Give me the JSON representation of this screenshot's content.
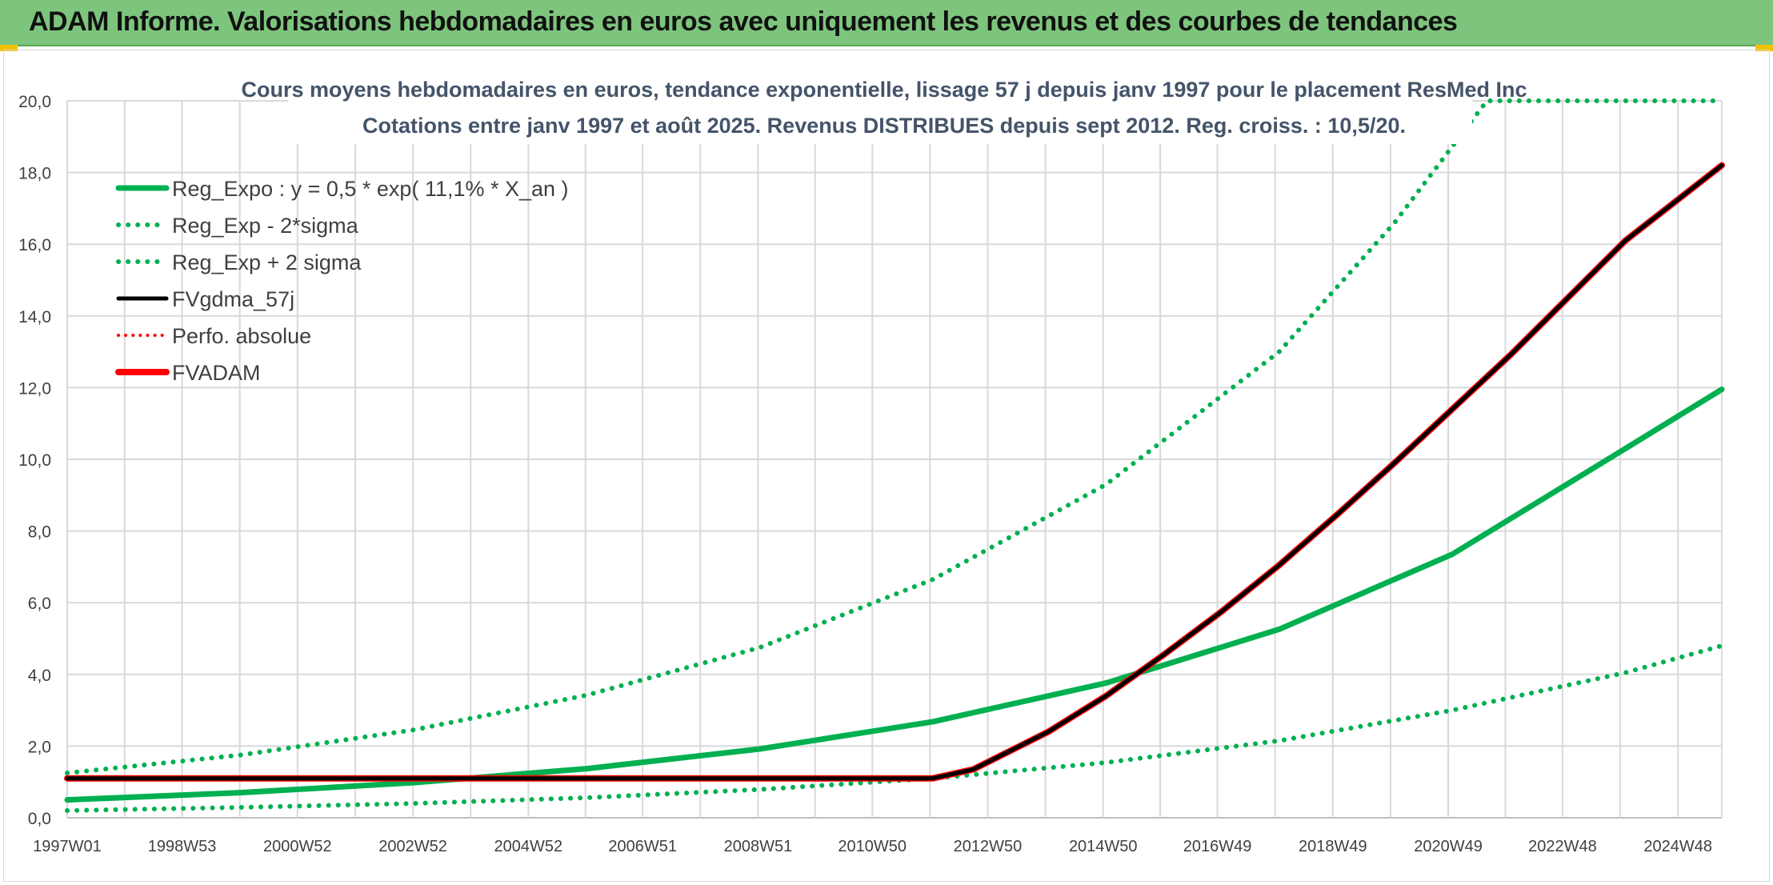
{
  "banner_title": "ADAM Informe. Valorisations hebdomadaires en euros avec uniquement les revenus et des courbes de tendances",
  "colors": {
    "banner": "#7dc57d",
    "green": "#00b050",
    "red": "#ff0000",
    "black": "#000000"
  },
  "chart_data": {
    "type": "line",
    "title": "Cours moyens hebdomadaires en euros, tendance exponentielle, lissage 57 j depuis janv 1997 pour le placement ResMed Inc",
    "subtitle": "Cotations entre janv 1997 et août 2025. Revenus DISTRIBUES depuis sept 2012. Reg. croiss. : 10,5/20.",
    "xlabel": "",
    "ylabel": "",
    "ylim": [
      0,
      20
    ],
    "yticks": [
      "0,0",
      "2,0",
      "4,0",
      "6,0",
      "8,0",
      "10,0",
      "12,0",
      "14,0",
      "16,0",
      "18,0",
      "20,0"
    ],
    "xlim": [
      1997.0,
      2025.67
    ],
    "xticks": [
      {
        "x": 1997.0,
        "label": "1997W01"
      },
      {
        "x": 1998.99,
        "label": "1998W53"
      },
      {
        "x": 2000.99,
        "label": "2000W52"
      },
      {
        "x": 2002.99,
        "label": "2002W52"
      },
      {
        "x": 2004.99,
        "label": "2004W52"
      },
      {
        "x": 2006.97,
        "label": "2006W51"
      },
      {
        "x": 2008.97,
        "label": "2008W51"
      },
      {
        "x": 2010.95,
        "label": "2010W50"
      },
      {
        "x": 2012.95,
        "label": "2012W50"
      },
      {
        "x": 2014.95,
        "label": "2014W50"
      },
      {
        "x": 2016.93,
        "label": "2016W49"
      },
      {
        "x": 2018.93,
        "label": "2018W49"
      },
      {
        "x": 2020.93,
        "label": "2020W49"
      },
      {
        "x": 2022.91,
        "label": "2022W48"
      },
      {
        "x": 2024.91,
        "label": "2024W48"
      }
    ],
    "grid": true,
    "legend_position": "top-left",
    "series": [
      {
        "name": "Reg_Expo : y = 0,5 * exp( 11,1% *  X_an )",
        "style": "solid-green",
        "points": [
          [
            1997.0,
            0.5
          ],
          [
            2000.0,
            0.7
          ],
          [
            2003.0,
            0.98
          ],
          [
            2006.0,
            1.37
          ],
          [
            2009.0,
            1.92
          ],
          [
            2012.0,
            2.68
          ],
          [
            2015.0,
            3.76
          ],
          [
            2018.0,
            5.26
          ],
          [
            2021.0,
            7.35
          ],
          [
            2024.0,
            10.3
          ],
          [
            2025.67,
            11.95
          ]
        ]
      },
      {
        "name": "Reg_Exp - 2*sigma",
        "style": "dotted-green",
        "points": [
          [
            1997.0,
            0.2
          ],
          [
            2000.0,
            0.29
          ],
          [
            2003.0,
            0.4
          ],
          [
            2006.0,
            0.56
          ],
          [
            2009.0,
            0.79
          ],
          [
            2012.0,
            1.1
          ],
          [
            2015.0,
            1.54
          ],
          [
            2018.0,
            2.15
          ],
          [
            2021.0,
            3.0
          ],
          [
            2024.0,
            4.05
          ],
          [
            2025.67,
            4.8
          ]
        ]
      },
      {
        "name": "Reg_Exp + 2 sigma",
        "style": "dotted-green",
        "points": [
          [
            1997.0,
            1.25
          ],
          [
            2000.0,
            1.75
          ],
          [
            2003.0,
            2.45
          ],
          [
            2006.0,
            3.42
          ],
          [
            2009.0,
            4.75
          ],
          [
            2012.0,
            6.65
          ],
          [
            2015.0,
            9.3
          ],
          [
            2018.0,
            13.0
          ],
          [
            2020.0,
            16.6
          ],
          [
            2021.6,
            20.0
          ],
          [
            2025.67,
            20.0
          ]
        ]
      },
      {
        "name": "FVgdma_57j",
        "style": "solid-black",
        "points": [
          [
            1997.0,
            1.1
          ],
          [
            2012.0,
            1.1
          ],
          [
            2012.7,
            1.35
          ],
          [
            2014.0,
            2.4
          ],
          [
            2015.0,
            3.4
          ],
          [
            2016.0,
            4.55
          ],
          [
            2017.0,
            5.75
          ],
          [
            2018.0,
            7.05
          ],
          [
            2019.0,
            8.45
          ],
          [
            2020.0,
            9.9
          ],
          [
            2021.0,
            11.4
          ],
          [
            2022.0,
            12.9
          ],
          [
            2023.0,
            14.5
          ],
          [
            2024.0,
            16.1
          ],
          [
            2025.67,
            18.2
          ]
        ]
      },
      {
        "name": "Perfo. absolue",
        "style": "dotted-red",
        "points": [
          [
            1997.0,
            1.1
          ],
          [
            2012.0,
            1.1
          ]
        ]
      },
      {
        "name": "FVADAM",
        "style": "solid-red",
        "points": [
          [
            1997.0,
            1.1
          ],
          [
            2012.0,
            1.1
          ],
          [
            2012.7,
            1.35
          ],
          [
            2014.0,
            2.4
          ],
          [
            2015.0,
            3.4
          ],
          [
            2016.0,
            4.55
          ],
          [
            2017.0,
            5.75
          ],
          [
            2018.0,
            7.05
          ],
          [
            2019.0,
            8.45
          ],
          [
            2020.0,
            9.9
          ],
          [
            2021.0,
            11.4
          ],
          [
            2022.0,
            12.9
          ],
          [
            2023.0,
            14.5
          ],
          [
            2024.0,
            16.1
          ],
          [
            2025.67,
            18.2
          ]
        ]
      }
    ]
  }
}
